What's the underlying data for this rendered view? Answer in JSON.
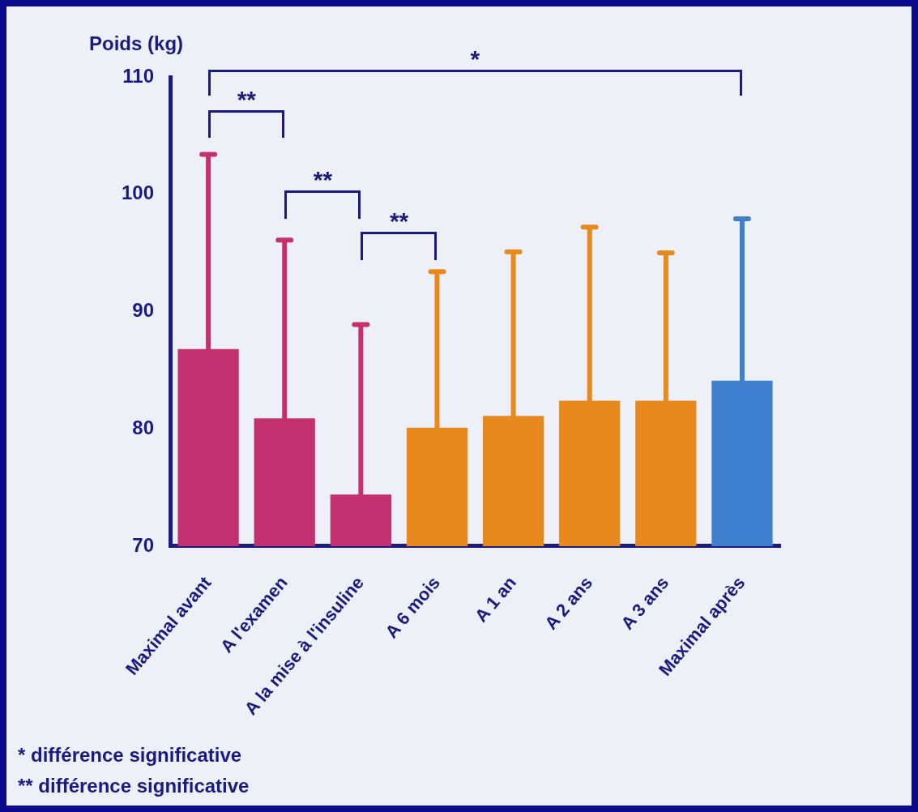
{
  "chart_data": {
    "type": "bar",
    "ylabel": "Poids (kg)",
    "categories": [
      "Maximal avant",
      "A l'examen",
      "A la mise à l'insuline",
      "A 6 mois",
      "A 1 an",
      "A 2 ans",
      "A 3 ans",
      "Maximal après"
    ],
    "values": [
      86.8,
      80.9,
      74.4,
      80.1,
      81.1,
      82.4,
      82.4,
      84.1
    ],
    "errors": [
      [
        86.8,
        103.4
      ],
      [
        80.9,
        96.1
      ],
      [
        74.4,
        88.9
      ],
      [
        80.1,
        93.4
      ],
      [
        81.1,
        95.1
      ],
      [
        82.4,
        97.2
      ],
      [
        82.4,
        95.0
      ],
      [
        84.1,
        97.9
      ]
    ],
    "colors": [
      "#c2306f",
      "#c2306f",
      "#c2306f",
      "#e8891e",
      "#e8891e",
      "#e8891e",
      "#e8891e",
      "#3f7fd0"
    ],
    "ylim": [
      70,
      110
    ],
    "yticks": [
      70,
      80,
      90,
      100,
      110
    ],
    "grid": false,
    "legend": false,
    "annotations": [
      "*",
      "**",
      "**",
      "**",
      "* différence significative",
      "** différence significative"
    ]
  }
}
